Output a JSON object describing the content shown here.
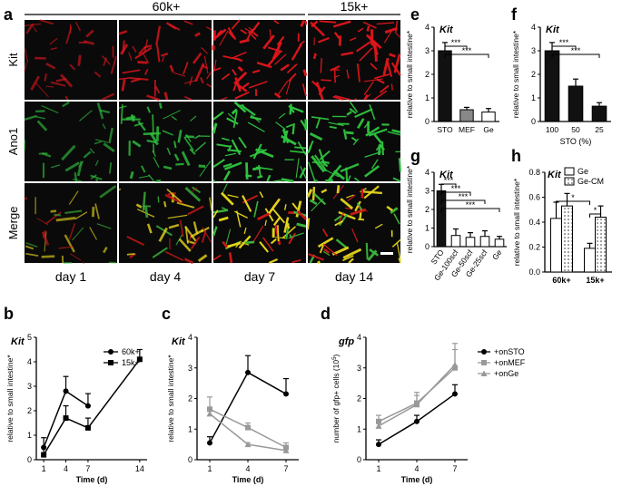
{
  "panel_letters": {
    "a": "a",
    "b": "b",
    "c": "c",
    "d": "d",
    "e": "e",
    "f": "f",
    "g": "g",
    "h": "h"
  },
  "micro": {
    "groups": [
      "60k+",
      "15k+"
    ],
    "rows": [
      "Kit",
      "Ano1",
      "Merge"
    ],
    "cols": [
      "day 1",
      "day 4",
      "day 7",
      "day 14"
    ]
  },
  "colors": {
    "kit": "#d0141a",
    "ano1": "#27b53a",
    "merge": "#c9c21a",
    "bar_black": "#111111",
    "bar_gray": "#888888",
    "gray_line": "#999999"
  },
  "chart_data": [
    {
      "panel": "b",
      "type": "line",
      "gene": "Kit",
      "ylabel": "relative to small intestine*",
      "xlabel": "Time (d)",
      "x": [
        1,
        4,
        7,
        14
      ],
      "xticks": [
        "1",
        "4",
        "7",
        "14"
      ],
      "ylim": [
        0,
        5
      ],
      "yticks": [
        "0",
        "1",
        "2",
        "3",
        "4",
        "5"
      ],
      "series": [
        {
          "name": "60k+",
          "marker": "circle",
          "x": [
            1,
            4,
            7
          ],
          "values": [
            0.5,
            2.8,
            2.2
          ],
          "err": [
            0.4,
            0.6,
            0.5
          ]
        },
        {
          "name": "15k+",
          "marker": "square",
          "x": [
            1,
            4,
            7,
            14
          ],
          "values": [
            0.2,
            1.7,
            1.3,
            4.1
          ],
          "err": [
            0.3,
            0.5,
            0.4,
            0.4
          ]
        }
      ]
    },
    {
      "panel": "c",
      "type": "line",
      "gene": "Kit",
      "ylabel": "relative to small intestine*",
      "xlabel": "Time (d)",
      "x": [
        1,
        4,
        7
      ],
      "xticks": [
        "1",
        "4",
        "7"
      ],
      "ylim": [
        0,
        4
      ],
      "yticks": [
        "0",
        "1",
        "2",
        "3",
        "4"
      ],
      "series": [
        {
          "color": "black",
          "marker": "circle",
          "x": [
            1,
            4,
            7
          ],
          "values": [
            0.55,
            2.85,
            2.15
          ],
          "err": [
            0.2,
            0.55,
            0.5
          ]
        },
        {
          "color": "gray",
          "marker": "square",
          "x": [
            1,
            4,
            7
          ],
          "values": [
            1.65,
            1.05,
            0.4
          ],
          "err": [
            0.4,
            0.15,
            0.15
          ]
        },
        {
          "color": "gray",
          "marker": "triangle",
          "x": [
            1,
            4,
            7
          ],
          "values": [
            1.5,
            0.5,
            0.3
          ],
          "err": [
            0.2,
            0.05,
            0.05
          ]
        }
      ]
    },
    {
      "panel": "d",
      "type": "line",
      "gene": "gfp",
      "ylabel": "number of gfp+ cells (10",
      "ylabel_sup": "5",
      "ylabel_tail": ")",
      "xlabel": "Time (d)",
      "x": [
        1,
        4,
        7
      ],
      "xticks": [
        "1",
        "4",
        "7"
      ],
      "ylim": [
        0,
        4
      ],
      "yticks": [
        "0",
        "1",
        "2",
        "3",
        "4"
      ],
      "series": [
        {
          "name": "+onSTO",
          "color": "black",
          "marker": "circle",
          "x": [
            1,
            4,
            7
          ],
          "values": [
            0.5,
            1.25,
            2.15
          ],
          "err": [
            0.15,
            0.2,
            0.3
          ]
        },
        {
          "name": "+onMEF",
          "color": "gray",
          "marker": "square",
          "x": [
            1,
            4,
            7
          ],
          "values": [
            1.25,
            1.85,
            3.0
          ],
          "err": [
            0.2,
            0.35,
            0.8
          ]
        },
        {
          "name": "+onGe",
          "color": "gray",
          "marker": "triangle",
          "x": [
            1,
            4,
            7
          ],
          "values": [
            1.1,
            1.8,
            3.1
          ],
          "err": [
            0.2,
            0.3,
            0.5
          ]
        }
      ]
    },
    {
      "panel": "e",
      "type": "bar",
      "gene": "Kit",
      "ylabel": "relative to small intestine*",
      "categories": [
        "STO",
        "MEF",
        "Ge"
      ],
      "values": [
        3.0,
        0.5,
        0.4
      ],
      "err": [
        0.35,
        0.1,
        0.15
      ],
      "bar_colors": [
        "#111111",
        "#888888",
        "#ffffff"
      ],
      "ylim": [
        0,
        4
      ],
      "yticks": [
        "0",
        "1",
        "2",
        "3",
        "4"
      ],
      "sig": [
        {
          "from": 0,
          "to": 1,
          "label": "***"
        },
        {
          "from": 0,
          "to": 2,
          "label": "***"
        }
      ]
    },
    {
      "panel": "f",
      "type": "bar",
      "gene": "Kit",
      "ylabel": "relative to small intestine*",
      "xlabel": "STO (%)",
      "categories": [
        "100",
        "50",
        "25"
      ],
      "values": [
        3.0,
        1.5,
        0.65
      ],
      "err": [
        0.35,
        0.3,
        0.15
      ],
      "bar_colors": [
        "#111111",
        "#111111",
        "#111111"
      ],
      "ylim": [
        0,
        4
      ],
      "yticks": [
        "0",
        "1",
        "2",
        "3",
        "4"
      ],
      "sig": [
        {
          "from": 0,
          "to": 1,
          "label": "***"
        },
        {
          "from": 0,
          "to": 2,
          "label": "***"
        }
      ]
    },
    {
      "panel": "g",
      "type": "bar",
      "gene": "Kit",
      "ylabel": "relative to small intestine*",
      "categories": [
        "STO",
        "Ge-100scf",
        "Ge-50scf",
        "Ge-25scf",
        "Ge"
      ],
      "values": [
        3.0,
        0.6,
        0.5,
        0.55,
        0.4
      ],
      "err": [
        0.35,
        0.35,
        0.25,
        0.3,
        0.15
      ],
      "bar_colors": [
        "#111111",
        "#ffffff",
        "#ffffff",
        "#ffffff",
        "#ffffff"
      ],
      "ylim": [
        0,
        4
      ],
      "yticks": [
        "0",
        "1",
        "2",
        "3",
        "4"
      ],
      "sig": [
        {
          "from": 0,
          "to": 1,
          "label": "***"
        },
        {
          "from": 0,
          "to": 2,
          "label": "***"
        },
        {
          "from": 0,
          "to": 3,
          "label": "***"
        },
        {
          "from": 0,
          "to": 4,
          "label": "***"
        }
      ]
    },
    {
      "panel": "h",
      "type": "bar",
      "gene": "Kit",
      "ylabel": "relative to small intestine*",
      "categories": [
        "60k+",
        "15k+"
      ],
      "series": [
        {
          "name": "Ge",
          "fill": "white",
          "values": [
            0.43,
            0.19
          ],
          "err": [
            0.13,
            0.04
          ]
        },
        {
          "name": "Ge-CM",
          "fill": "dots",
          "values": [
            0.53,
            0.44
          ],
          "err": [
            0.1,
            0.09
          ]
        }
      ],
      "ylim": [
        0,
        0.8
      ],
      "yticks": [
        "0.0",
        "0.2",
        "0.4",
        "0.6",
        "0.8"
      ],
      "sig": [
        {
          "label": "*",
          "kind": "60k-Ge vs 15k-Ge"
        },
        {
          "label": "*",
          "kind": "15k Ge vs Ge-CM"
        }
      ]
    }
  ]
}
